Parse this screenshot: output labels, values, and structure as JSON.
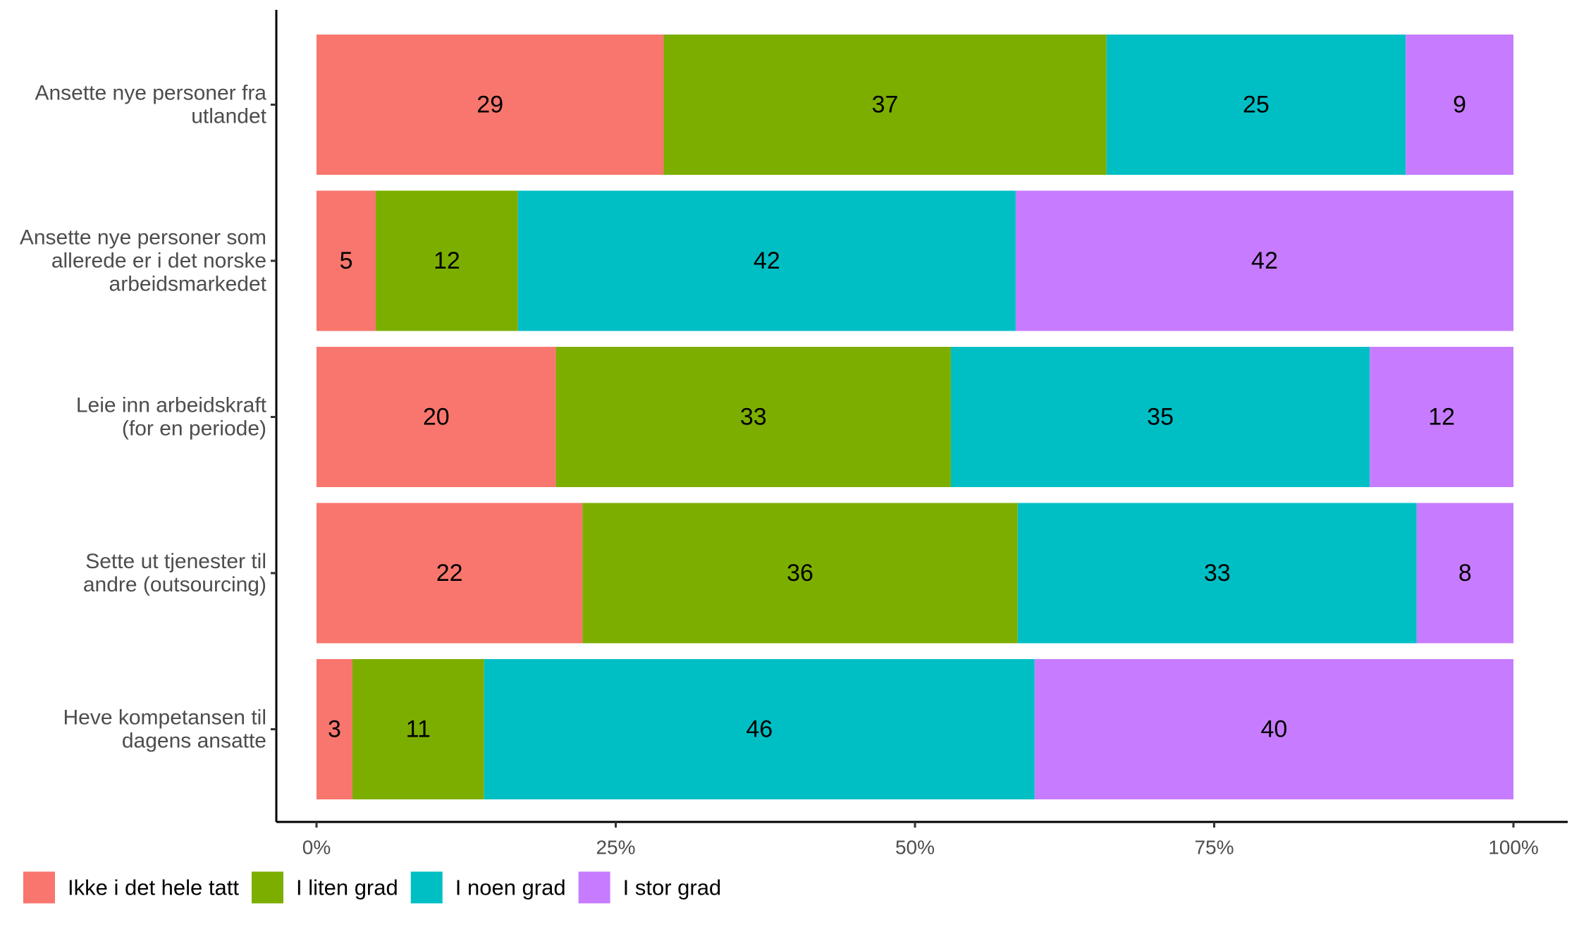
{
  "chart_data": {
    "type": "bar",
    "orientation": "horizontal",
    "stacked": true,
    "normalized": true,
    "categories": [
      [
        "Ansette nye personer fra",
        "utlandet"
      ],
      [
        "Ansette nye personer som",
        "allerede er i det norske",
        "arbeidsmarkedet"
      ],
      [
        "Leie inn arbeidskraft",
        "(for en periode)"
      ],
      [
        "Sette ut tjenester til",
        "andre (outsourcing)"
      ],
      [
        "Heve kompetansen til",
        "dagens ansatte"
      ]
    ],
    "series": [
      {
        "name": "Ikke i det hele tatt",
        "color": "#F8766D",
        "values": [
          29,
          5,
          20,
          22,
          3
        ]
      },
      {
        "name": "I liten grad",
        "color": "#7CAE00",
        "values": [
          37,
          12,
          33,
          36,
          11
        ]
      },
      {
        "name": "I noen grad",
        "color": "#00BFC4",
        "values": [
          25,
          42,
          35,
          33,
          46
        ]
      },
      {
        "name": "I stor grad",
        "color": "#C77CFF",
        "values": [
          9,
          42,
          12,
          8,
          40
        ]
      }
    ],
    "xlim": [
      0,
      1
    ],
    "xticks": [
      "0%",
      "25%",
      "50%",
      "75%",
      "100%"
    ],
    "grid": false,
    "legend_position": "bottom-left"
  }
}
